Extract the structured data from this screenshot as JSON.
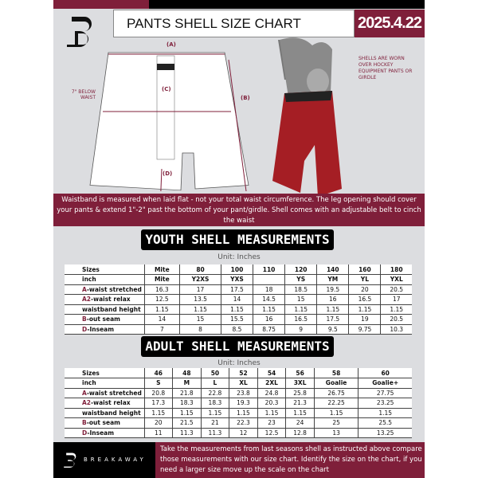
{
  "header": {
    "title": "PANTS SHELL SIZE CHART",
    "date": "2025.4.22"
  },
  "diagram": {
    "a": "(A)",
    "b": "(B)",
    "c": "(C)",
    "d": "(D)",
    "below_waist": "7\" BELOW WAIST",
    "note": "SHELLS ARE WORN OVER HOCKEY EQUIPMENT PANTS OR GIRDLE"
  },
  "banner": "Waistband is measured when laid flat - not your total waist circumference. The leg opening should cover your pants & extend 1\"-2\" past the bottom of your pant/girdle. Shell comes with an adjustable belt to cinch the waist",
  "colors": {
    "accent": "#7f1f3a",
    "dark": "#000000",
    "background": "#dcdde0"
  },
  "youth": {
    "title": "YOUTH SHELL MEASUREMENTS",
    "unit": "Unit: Inches",
    "rows": [
      {
        "label": "Sizes",
        "values": [
          "Mite",
          "80",
          "100",
          "110",
          "120",
          "140",
          "160",
          "180"
        ]
      },
      {
        "label": "inch",
        "values": [
          "Mite",
          "Y2XS",
          "YXS",
          "",
          "YS",
          "YM",
          "YL",
          "YXL"
        ]
      },
      {
        "prefix": "A",
        "label": "-waist stretched",
        "values": [
          "16.3",
          "17",
          "17.5",
          "18",
          "18.5",
          "19.5",
          "20",
          "20.5"
        ]
      },
      {
        "prefix": "A2",
        "label": "-waist relax",
        "values": [
          "12.5",
          "13.5",
          "14",
          "14.5",
          "15",
          "16",
          "16.5",
          "17"
        ]
      },
      {
        "label": "waistband height",
        "values": [
          "1.15",
          "1.15",
          "1.15",
          "1.15",
          "1.15",
          "1.15",
          "1.15",
          "1.15"
        ]
      },
      {
        "prefix": "B",
        "label": "-out seam",
        "values": [
          "14",
          "15",
          "15.5",
          "16",
          "16.5",
          "17.5",
          "19",
          "20.5"
        ]
      },
      {
        "prefix": "D",
        "label": "-Inseam",
        "values": [
          "7",
          "8",
          "8.5",
          "8.75",
          "9",
          "9.5",
          "9.75",
          "10.3"
        ]
      }
    ]
  },
  "adult": {
    "title": "ADULT SHELL MEASUREMENTS",
    "unit": "Unit: Inches",
    "rows": [
      {
        "label": "Sizes",
        "values": [
          "46",
          "48",
          "50",
          "52",
          "54",
          "56",
          "58",
          "60"
        ]
      },
      {
        "label": "inch",
        "values": [
          "S",
          "M",
          "L",
          "XL",
          "2XL",
          "3XL",
          "Goalie",
          "Goalie+"
        ]
      },
      {
        "prefix": "A",
        "label": "-waist stretched",
        "values": [
          "20.8",
          "21.8",
          "22.8",
          "23.8",
          "24.8",
          "25.8",
          "26.75",
          "27.75"
        ]
      },
      {
        "prefix": "A2",
        "label": "-waist relax",
        "values": [
          "17.3",
          "18.3",
          "18.3",
          "19.3",
          "20.3",
          "21.3",
          "22.25",
          "23.25"
        ]
      },
      {
        "label": "waistband height",
        "values": [
          "1.15",
          "1.15",
          "1.15",
          "1.15",
          "1.15",
          "1.15",
          "1.15",
          "1.15"
        ]
      },
      {
        "prefix": "B",
        "label": "-out seam",
        "values": [
          "20",
          "21.5",
          "21",
          "22.3",
          "23",
          "24",
          "25",
          "25.5"
        ]
      },
      {
        "prefix": "D",
        "label": "-Inseam",
        "values": [
          "11",
          "11.3",
          "11.3",
          "12",
          "12.5",
          "12.8",
          "13",
          "13.25"
        ]
      }
    ]
  },
  "footer": {
    "brand": "BREAKAWAY",
    "text": "Take the measurements from last seasons shell as instructed above compare those measurements  with our size chart. Identify the size on the chart, if you need a larger size move up the scale on the chart"
  }
}
